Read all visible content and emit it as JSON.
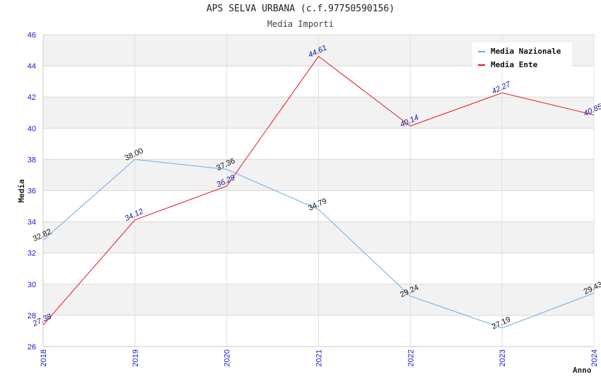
{
  "chart_data": {
    "type": "line",
    "title": "APS SELVA URBANA (c.f.97750590156)",
    "subtitle": "Media Importi",
    "xlabel": "Anno",
    "ylabel": "Media",
    "x": [
      "2018",
      "2019",
      "2020",
      "2021",
      "2022",
      "2023",
      "2024"
    ],
    "ylim": [
      26,
      46
    ],
    "yticks": [
      26,
      28,
      30,
      32,
      34,
      36,
      38,
      40,
      42,
      44,
      46
    ],
    "grid": true,
    "legend_position": "top-right",
    "series": [
      {
        "name": "Media Nazionale",
        "color": "#6aaee8",
        "values": [
          32.82,
          38.0,
          37.36,
          34.79,
          29.24,
          27.19,
          29.43
        ],
        "labels": [
          "32.82",
          "38.00",
          "37.36",
          "34.79",
          "29.24",
          "27.19",
          "29.43"
        ]
      },
      {
        "name": "Media Ente",
        "color": "#e8141a",
        "values": [
          27.38,
          34.12,
          36.29,
          44.61,
          40.14,
          42.27,
          40.85
        ],
        "labels": [
          "27.38",
          "34.12",
          "36.29",
          "44.61",
          "40.14",
          "42.27",
          "40.85"
        ]
      }
    ]
  }
}
